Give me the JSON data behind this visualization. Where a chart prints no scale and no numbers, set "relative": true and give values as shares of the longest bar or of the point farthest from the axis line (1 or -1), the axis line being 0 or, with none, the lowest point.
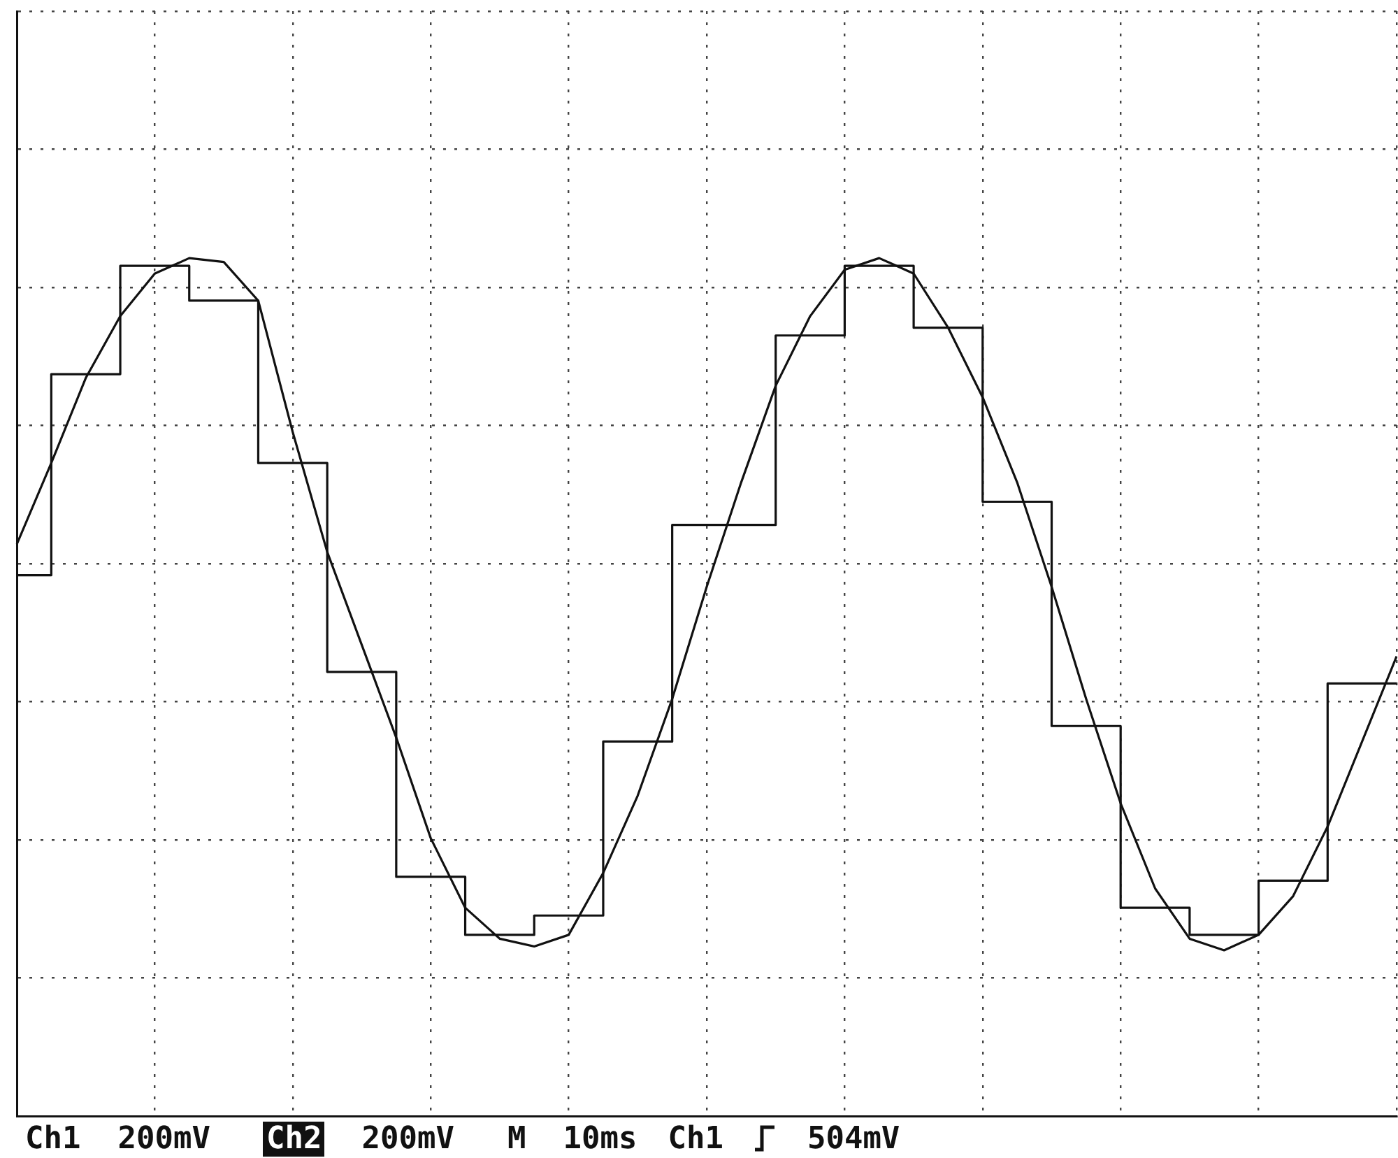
{
  "chart_data": {
    "type": "line",
    "relative": true,
    "grid": true,
    "legend": false,
    "marker": "none",
    "line_style": "solid",
    "categories": [
      null,
      null,
      null,
      null,
      null,
      null,
      null,
      null,
      null,
      null,
      null,
      null,
      null,
      null,
      null,
      null,
      null,
      null,
      null,
      null,
      null,
      null,
      null,
      null,
      null,
      null,
      null,
      null,
      null,
      null,
      null,
      null,
      null,
      null,
      null,
      null,
      null,
      null,
      null,
      null,
      null
    ],
    "series": [
      {
        "type": "line",
        "color": "#111111",
        "values": [
          0.05,
          0.26,
          0.48,
          0.64,
          0.75,
          0.79,
          0.78,
          0.68,
          0.34,
          0.03,
          -0.21,
          -0.45,
          -0.71,
          -0.89,
          -0.97,
          -0.99,
          -0.96,
          -0.8,
          -0.6,
          -0.35,
          -0.06,
          0.21,
          0.46,
          0.64,
          0.76,
          0.79,
          0.75,
          0.61,
          0.43,
          0.21,
          -0.06,
          -0.35,
          -0.62,
          -0.84,
          -0.97,
          -1,
          -0.96,
          -0.86,
          -0.68,
          -0.46,
          -0.24
        ]
      },
      {
        "type": "step",
        "color": "#111111",
        "values": [
          -0.03,
          -0.03,
          0.49,
          0.49,
          0.77,
          0.77,
          0.68,
          0.68,
          0.26,
          0.26,
          -0.28,
          -0.28,
          -0.81,
          -0.81,
          -0.96,
          -0.96,
          -0.91,
          -0.91,
          -0.46,
          -0.46,
          0.1,
          0.1,
          0.1,
          0.59,
          0.59,
          0.77,
          0.77,
          0.61,
          0.61,
          0.16,
          0.16,
          -0.42,
          -0.42,
          -0.89,
          -0.89,
          -0.96,
          -0.96,
          -0.82,
          -0.82,
          -0.31,
          -0.31
        ]
      }
    ],
    "annotations": [
      "Ch1 200mV",
      "Ch2 200mV",
      "M 10ms",
      "Ch1",
      "504mV"
    ]
  }
}
